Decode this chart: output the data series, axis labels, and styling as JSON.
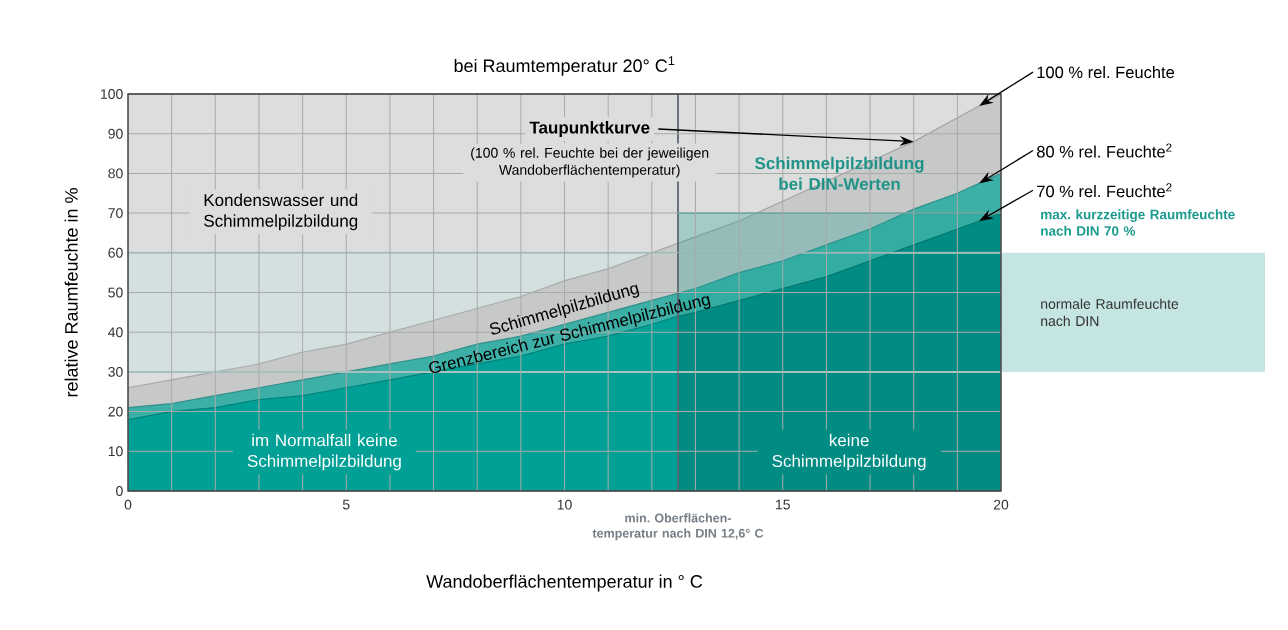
{
  "chart_data": {
    "type": "area",
    "title": "bei Raumtemperatur 20° C$^{1}$",
    "xlabel": "Wandoberflächentemperatur in ° C",
    "ylabel": "relative Raumfeuchte in %",
    "x": [
      0,
      1,
      2,
      3,
      4,
      5,
      6,
      7,
      8,
      9,
      10,
      11,
      12,
      13,
      14,
      15,
      16,
      17,
      18,
      19,
      20
    ],
    "series": [
      {
        "name": "100 % rel. Feuchte",
        "color": "#c7c8c8",
        "values": [
          26,
          28,
          30,
          32,
          35,
          37,
          40,
          43,
          46,
          49,
          53,
          56,
          60,
          64,
          68,
          73,
          78,
          83,
          88,
          94,
          100
        ]
      },
      {
        "name": "80 % rel. Feuchte$^{2}$",
        "color": "#3cb0a7",
        "values": [
          21,
          22,
          24,
          26,
          28,
          30,
          32,
          34,
          37,
          39,
          42,
          45,
          48,
          51,
          55,
          58,
          62,
          66,
          71,
          75,
          80
        ]
      },
      {
        "color": "#00a096",
        "x": [
          0,
          1,
          2,
          3,
          4,
          5,
          6,
          7,
          8,
          9,
          10,
          11,
          12,
          12.6
        ],
        "values": [
          18,
          20,
          21,
          23,
          24,
          26,
          28,
          30,
          32,
          34,
          37,
          39,
          42,
          44
        ]
      },
      {
        "name": "70 % rel. Feuchte$^{2}$",
        "color": "#008c83",
        "x": [
          12.6,
          13,
          14,
          15,
          16,
          17,
          18,
          19,
          20
        ],
        "values": [
          44,
          45,
          48,
          51,
          54,
          58,
          62,
          66,
          70
        ]
      }
    ],
    "xlim": [
      0,
      20
    ],
    "ylim": [
      0,
      100
    ],
    "xticks": [
      0,
      5,
      10,
      15,
      20
    ],
    "yticks": [
      0,
      10,
      20,
      30,
      40,
      50,
      60,
      70,
      80,
      90,
      100
    ],
    "grid": true,
    "ref_lines": [
      {
        "axis": "x",
        "value": 12.6,
        "label": "min. Oberflächen- temperatur nach DIN 12,6° C",
        "color": "#5d6771"
      },
      {
        "axis": "y",
        "value": 70,
        "label": "max. kurzzeitige Raumfeuchte nach DIN 70 %",
        "color": "#1a9a8e"
      }
    ],
    "bands": [
      {
        "axis": "y",
        "from": 30,
        "to": 60,
        "label": "normale Raumfeuchte nach DIN",
        "color": "#c5e5e2"
      },
      {
        "axis": "x",
        "from": 12.6,
        "to": 20,
        "label": "Schimmelpilzbildung bei DIN-Werten",
        "color": "#22a397"
      }
    ],
    "annotations": [
      {
        "text": "Taupunktkurve",
        "x": 18,
        "y": 88
      },
      "(100 % rel. Feuchte bei der jeweiligen Wandoberflächentemperatur)",
      "Kondenswasser und Schimmelpilzbildung",
      "Schimmelpilzbildung",
      "Grenzbereich zur Schimmelpilzbildung",
      "im Normalfall keine Schimmelpilzbildung",
      "keine Schimmelpilzbildung"
    ]
  }
}
